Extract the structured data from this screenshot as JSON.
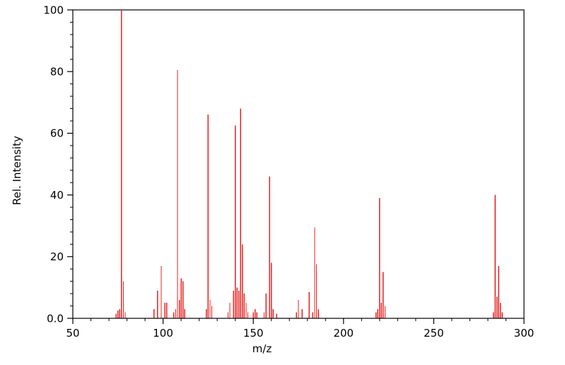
{
  "chart_data": {
    "type": "bar",
    "title": "",
    "xlabel": "m/z",
    "ylabel": "Rel. Intensity",
    "xlim": [
      50,
      300
    ],
    "ylim": [
      0,
      100
    ],
    "grid": false,
    "legend": "none",
    "bar_color": "#e52222",
    "axis_color": "#000000",
    "background_color": "#ffffff",
    "x_ticks": {
      "major": [
        50,
        100,
        150,
        200,
        250,
        300
      ],
      "labels": [
        "50",
        "100",
        "150",
        "200",
        "250",
        "300"
      ],
      "minor_step": 10
    },
    "y_ticks": {
      "major": [
        0,
        20,
        40,
        60,
        80,
        100
      ],
      "labels": [
        "0.0",
        "20",
        "40",
        "60",
        "80",
        "100"
      ],
      "minor_step": 4
    },
    "peaks": [
      [
        74,
        1.5
      ],
      [
        75,
        2.5
      ],
      [
        76,
        3
      ],
      [
        77,
        100
      ],
      [
        78,
        12
      ],
      [
        79,
        2
      ],
      [
        95,
        3
      ],
      [
        97,
        9
      ],
      [
        99,
        17
      ],
      [
        101,
        5
      ],
      [
        102,
        5
      ],
      [
        106,
        2
      ],
      [
        107,
        3
      ],
      [
        108,
        80.5
      ],
      [
        109,
        6
      ],
      [
        110,
        13
      ],
      [
        111,
        12
      ],
      [
        112,
        3
      ],
      [
        124,
        3
      ],
      [
        125,
        66
      ],
      [
        126,
        6
      ],
      [
        127,
        4
      ],
      [
        136,
        2
      ],
      [
        137,
        5
      ],
      [
        139,
        9
      ],
      [
        140,
        62.5
      ],
      [
        141,
        10
      ],
      [
        142,
        9
      ],
      [
        143,
        68
      ],
      [
        144,
        24
      ],
      [
        145,
        8
      ],
      [
        146,
        5
      ],
      [
        147,
        2
      ],
      [
        150,
        2
      ],
      [
        151,
        3
      ],
      [
        152,
        2
      ],
      [
        156,
        2
      ],
      [
        157,
        8
      ],
      [
        159,
        46
      ],
      [
        160,
        18
      ],
      [
        161,
        3
      ],
      [
        163,
        1.5
      ],
      [
        174,
        2
      ],
      [
        175,
        6
      ],
      [
        177,
        3
      ],
      [
        181,
        8.5
      ],
      [
        183,
        2
      ],
      [
        184,
        29.5
      ],
      [
        185,
        17.5
      ],
      [
        186,
        3
      ],
      [
        218,
        2
      ],
      [
        219,
        3
      ],
      [
        220,
        39
      ],
      [
        221,
        5
      ],
      [
        222,
        15
      ],
      [
        223,
        4
      ],
      [
        283,
        2
      ],
      [
        284,
        40
      ],
      [
        285,
        7
      ],
      [
        286,
        17
      ],
      [
        287,
        5
      ],
      [
        288,
        2
      ]
    ]
  }
}
